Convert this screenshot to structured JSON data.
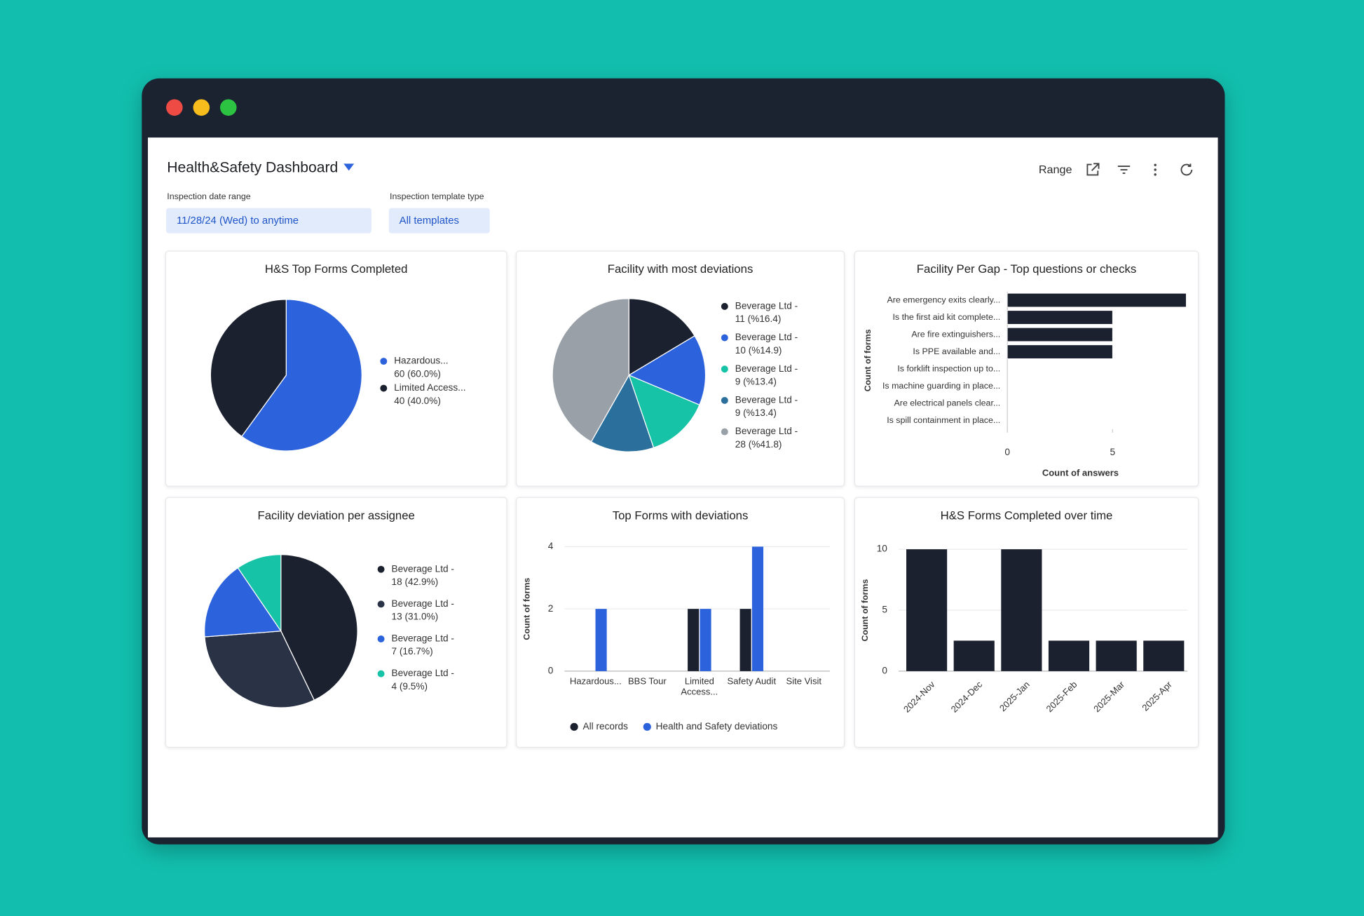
{
  "header": {
    "title": "Health&Safety Dashboard",
    "toolbar_label": "Range"
  },
  "filters": [
    {
      "label": "Inspection date range",
      "value": "11/28/24 (Wed) to anytime"
    },
    {
      "label": "Inspection template type",
      "value": "All templates"
    }
  ],
  "chart_data": [
    {
      "type": "pie",
      "title": "H&S Top Forms Completed",
      "categories": [
        "Hazardous...",
        "Limited Access..."
      ],
      "values": [
        60,
        40
      ],
      "value_labels": [
        "60 (60.0%)",
        "40 (40.0%)"
      ],
      "colors": [
        "#2c63dc",
        "#1c2130"
      ]
    },
    {
      "type": "pie",
      "title": "Facility with most deviations",
      "categories": [
        "Beverage Ltd -",
        "Beverage Ltd -",
        "Beverage Ltd -",
        "Beverage Ltd -",
        "Beverage Ltd -"
      ],
      "values": [
        11,
        10,
        9,
        9,
        28
      ],
      "value_labels": [
        "11 (%16.4)",
        "10 (%14.9)",
        "9 (%13.4)",
        "9 (%13.4)",
        "28 (%41.8)"
      ],
      "colors": [
        "#1c2130",
        "#2c63dc",
        "#17c3a6",
        "#2b6f9c",
        "#9aa0a8"
      ]
    },
    {
      "type": "barh",
      "title": "Facility Per Gap - Top questions or checks",
      "categories": [
        "Are emergency exits clearly...",
        "Is the first aid kit complete...",
        "Are fire extinguishers...",
        "Is PPE available and...",
        "Is forklift inspection up to...",
        "Is machine guarding in place...",
        "Are electrical panels clear...",
        "Is spill containment in place..."
      ],
      "values": [
        8.5,
        5,
        5,
        5,
        0,
        0,
        0,
        0
      ],
      "color": "#1c2130",
      "xlim": [
        0,
        8.6
      ],
      "xticks": [
        0,
        5
      ],
      "xlabel": "Count of answers",
      "ylabel": "Count of forms"
    },
    {
      "type": "pie",
      "title": "Facility deviation per assignee",
      "categories": [
        "Beverage Ltd -",
        "Beverage Ltd -",
        "Beverage Ltd -",
        "Beverage Ltd -"
      ],
      "values": [
        18,
        13,
        7,
        4
      ],
      "value_labels": [
        "18 (42.9%)",
        "13 (31.0%)",
        "7 (16.7%)",
        "4 (9.5%)"
      ],
      "colors": [
        "#1c2130",
        "#2a3246",
        "#2c63dc",
        "#17c3a6"
      ]
    },
    {
      "type": "bar",
      "title": "Top Forms with deviations",
      "categories": [
        "Hazardous...",
        "BBS Tour",
        "Limited Access...",
        "Safety Audit",
        "Site Visit"
      ],
      "series": [
        {
          "name": "All records",
          "color": "#1c2130",
          "values": [
            0,
            0,
            2,
            2,
            0
          ]
        },
        {
          "name": "Health and Safety deviations",
          "color": "#2c63dc",
          "values": [
            2,
            0,
            2,
            4,
            0
          ]
        }
      ],
      "ylim": [
        0,
        4
      ],
      "yticks": [
        0,
        2,
        4
      ],
      "ylabel": "Count of forms",
      "grid": true
    },
    {
      "type": "bar",
      "title": "H&S Forms Completed over time",
      "categories": [
        "2024-Nov",
        "2024-Dec",
        "2025-Jan",
        "2025-Feb",
        "2025-Mar",
        "2025-Apr"
      ],
      "series": [
        {
          "color": "#1c2130",
          "values": [
            10,
            2.5,
            10,
            2.5,
            2.5,
            2.5
          ]
        }
      ],
      "ylim": [
        0,
        10
      ],
      "yticks": [
        0,
        5,
        10
      ],
      "ylabel": "Count of forms",
      "grid": true,
      "rotate_labels": true
    }
  ]
}
